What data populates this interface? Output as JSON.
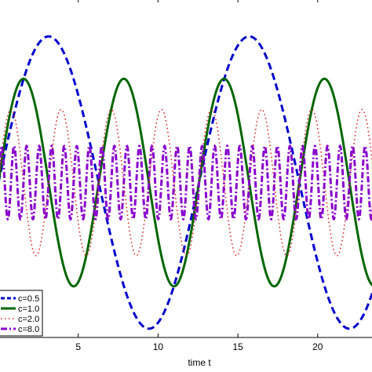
{
  "chart_data": {
    "type": "line",
    "title": "",
    "xlabel": "time t",
    "ylabel": "",
    "xlim": [
      0,
      23.5
    ],
    "ylim": [
      -1.06,
      1.26
    ],
    "x_ticks": [
      5,
      10,
      15,
      20
    ],
    "grid": false,
    "legend_position": "bottom-left",
    "series": [
      {
        "name": "c=0.5",
        "color": "#0000cc",
        "style": "dashed",
        "amplitude": 1.0,
        "frequency": 0.5
      },
      {
        "name": "c=1.0",
        "color": "#006600",
        "style": "solid",
        "amplitude": 0.71,
        "frequency": 1.0
      },
      {
        "name": "c=2.0",
        "color": "#dd2222",
        "style": "dotted",
        "amplitude": 0.5,
        "frequency": 2.0
      },
      {
        "name": "c=8.0",
        "color": "#8800cc",
        "style": "dashdot",
        "amplitude": 0.25,
        "frequency": 8.0
      }
    ]
  }
}
